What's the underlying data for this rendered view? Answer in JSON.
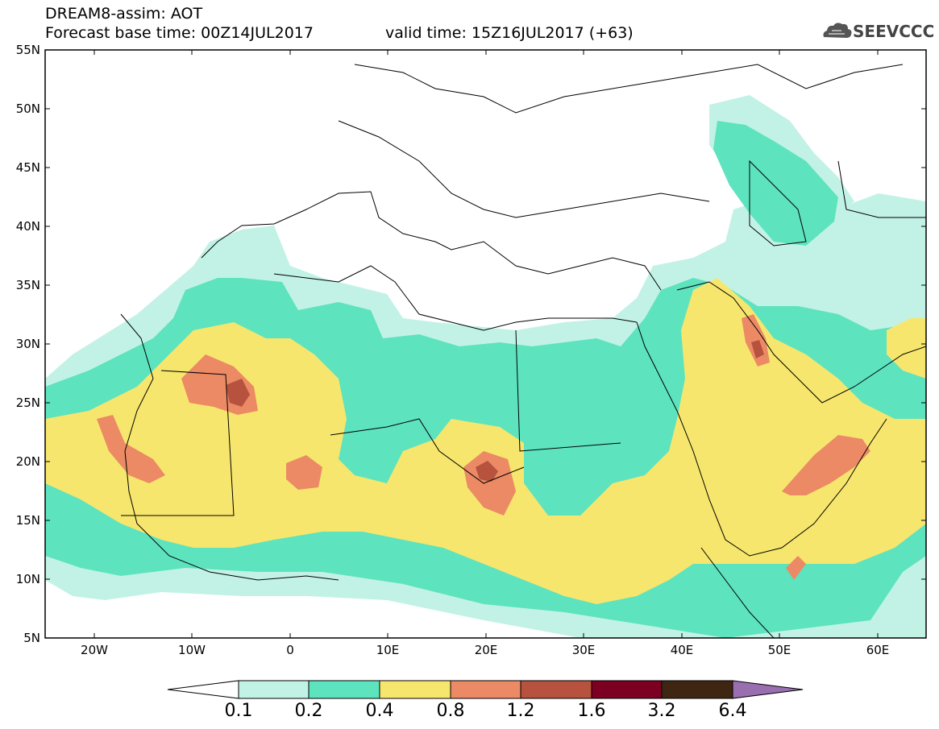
{
  "header": {
    "title": "DREAM8-assim: AOT",
    "base_time": "Forecast base time: 00Z14JUL2017",
    "valid_time": "valid time: 15Z16JUL2017 (+63)"
  },
  "logo": {
    "text": "SEEVCCC",
    "icon": "cloud-logo-icon"
  },
  "map": {
    "lat_labels": [
      "55N",
      "50N",
      "45N",
      "40N",
      "35N",
      "30N",
      "25N",
      "20N",
      "15N",
      "10N",
      "5N"
    ],
    "lon_labels": [
      "20W",
      "10W",
      "0",
      "10E",
      "20E",
      "30E",
      "40E",
      "50E",
      "60E"
    ],
    "lat_range": [
      5,
      55
    ],
    "lon_range": [
      -25,
      65
    ],
    "field": "Aerosol optical thickness"
  },
  "colorbar": {
    "levels": [
      "0.1",
      "0.2",
      "0.4",
      "0.8",
      "1.2",
      "1.6",
      "3.2",
      "6.4"
    ],
    "colors": [
      "#ffffff",
      "#c2f2e6",
      "#5ee3bf",
      "#f7e66d",
      "#eb8a65",
      "#b6523d",
      "#7c0021",
      "#3f2613",
      "#9a6fb0"
    ]
  }
}
